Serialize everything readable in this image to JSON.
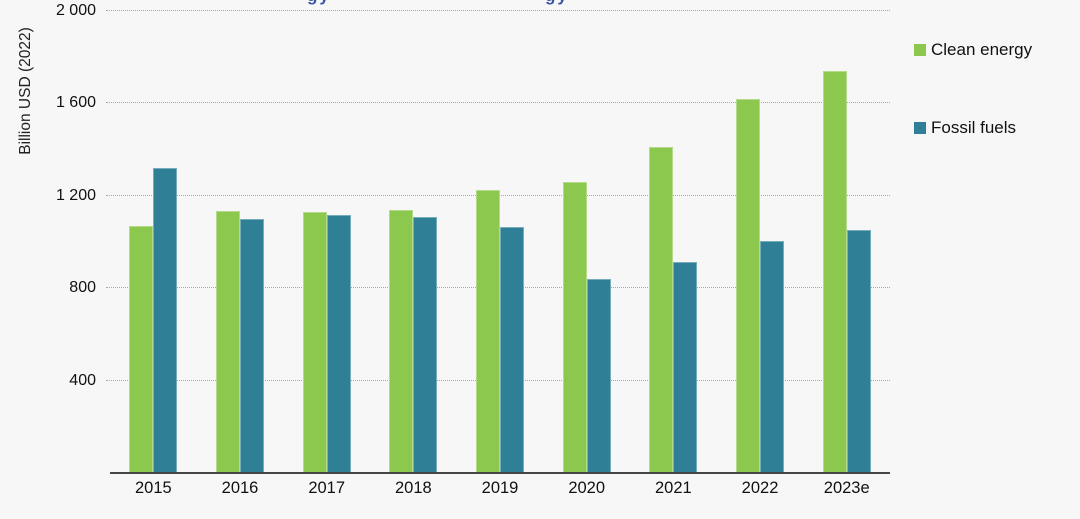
{
  "page": {
    "background_color": "#f7f7f7"
  },
  "cropped_title_fragments": {
    "color": "#3a57a7",
    "left_text": "gy",
    "right_text": "gy"
  },
  "chart_data": {
    "type": "bar",
    "title": "",
    "ylabel": "Billion USD (2022)",
    "xlabel": "",
    "categories": [
      "2015",
      "2016",
      "2017",
      "2018",
      "2019",
      "2020",
      "2021",
      "2022",
      "2023e"
    ],
    "series": [
      {
        "name": "Clean energy",
        "color": "#8dc84e",
        "values": [
          1070,
          1135,
          1130,
          1140,
          1225,
          1260,
          1410,
          1620,
          1740
        ]
      },
      {
        "name": "Fossil fuels",
        "color": "#2f8096",
        "values": [
          1320,
          1100,
          1115,
          1110,
          1065,
          840,
          915,
          1005,
          1050
        ]
      }
    ],
    "ylim": [
      0,
      2000
    ],
    "yticks": [
      400,
      800,
      1200,
      1600,
      2000
    ],
    "ytick_labels": [
      "400",
      "800",
      "1 200",
      "1 600",
      "2 000"
    ],
    "grid": "horizontal-dotted",
    "gridline_color": "#a9a9a9",
    "axis_line_color": "#454545",
    "legend_position": "right"
  }
}
